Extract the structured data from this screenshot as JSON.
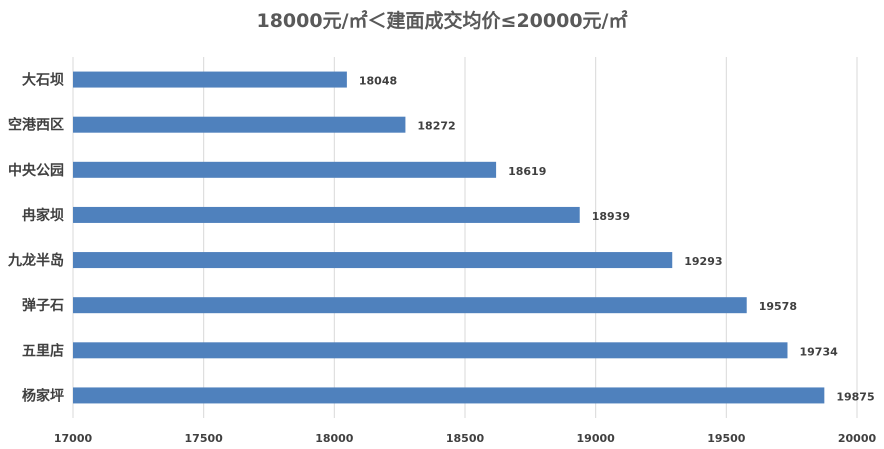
{
  "chart_data": {
    "type": "bar",
    "orientation": "horizontal",
    "title": "18000元/㎡＜建面成交均价≤20000元/㎡",
    "categories": [
      "大石坝",
      "空港西区",
      "中央公园",
      "冉家坝",
      "九龙半岛",
      "弹子石",
      "五里店",
      "杨家坪"
    ],
    "values": [
      18048,
      18272,
      18619,
      18939,
      19293,
      19578,
      19734,
      19875
    ],
    "xlim": [
      17000,
      20000
    ],
    "xticks": [
      17000,
      17500,
      18000,
      18500,
      19000,
      19500,
      20000
    ],
    "xlabel": "",
    "ylabel": "",
    "grid": true,
    "bar_color": "#4f81bd",
    "data_labels": true
  }
}
